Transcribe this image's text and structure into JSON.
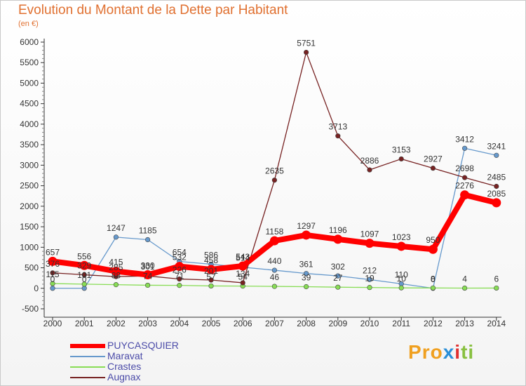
{
  "header": {
    "title": "Evolution du Montant de la Dette par Habitant",
    "subtitle": "(en €)"
  },
  "logo": {
    "letters": [
      "P",
      "r",
      "o",
      "x",
      "i",
      "t",
      "i"
    ],
    "colors": [
      "#f0a020",
      "#f0a020",
      "#f0a020",
      "#2a8fd8",
      "#e03030",
      "#88c040",
      "#88c040"
    ]
  },
  "chart_data": {
    "type": "line",
    "categories": [
      "2000",
      "2001",
      "2002",
      "2003",
      "2004",
      "2005",
      "2006",
      "2007",
      "2008",
      "2009",
      "2010",
      "2011",
      "2012",
      "2013",
      "2014"
    ],
    "ylim": [
      -500,
      6000
    ],
    "yticks": [
      "-500",
      "0",
      "500",
      "1000",
      "1500",
      "2000",
      "2500",
      "3000",
      "3500",
      "4000",
      "4500",
      "5000",
      "5500",
      "6000"
    ],
    "grid": false,
    "legend_position": "bottom-left",
    "series": [
      {
        "name": "PUYCASQUIER",
        "color": "#ff0000",
        "values": [
          657,
          556,
          415,
          330,
          532,
          458,
          543,
          1158,
          1297,
          1196,
          1097,
          1023,
          950,
          2276,
          2085
        ],
        "labels": [
          "657",
          "556",
          "415",
          "330",
          "532",
          "458",
          "543",
          "1158",
          "1297",
          "1196",
          "1097",
          "1023",
          "950",
          "2276",
          "2085"
        ]
      },
      {
        "name": "Maravat",
        "color": "#6699cc",
        "values": [
          0,
          0,
          1247,
          1185,
          654,
          586,
          514,
          440,
          361,
          302,
          212,
          110,
          0,
          3412,
          3241
        ],
        "labels": [
          "0",
          "0",
          "1247",
          "1185",
          "654",
          "586",
          "514",
          "440",
          "361",
          "302",
          "212",
          "110",
          "0",
          "3412",
          "3241"
        ]
      },
      {
        "name": "Crastes",
        "color": "#88dd55",
        "values": [
          115,
          101,
          88,
          74,
          71,
          57,
          54,
          46,
          39,
          27,
          19,
          10,
          8,
          4,
          6
        ],
        "labels": [
          "115",
          "101",
          "88",
          "74",
          "71",
          "57",
          "54",
          "46",
          "39",
          "27",
          "19",
          "10",
          "8",
          "4",
          "6"
        ]
      },
      {
        "name": "Augnax",
        "color": "#772222",
        "values": [
          376,
          329,
          285,
          301,
          226,
          201,
          134,
          2635,
          5751,
          3713,
          2886,
          3153,
          2927,
          2698,
          2485
        ],
        "labels": [
          "376",
          "329",
          "285",
          "301",
          "226",
          "201",
          "134",
          "2635",
          "5751",
          "3713",
          "2886",
          "3153",
          "2927",
          "2698",
          "2485"
        ]
      }
    ]
  }
}
